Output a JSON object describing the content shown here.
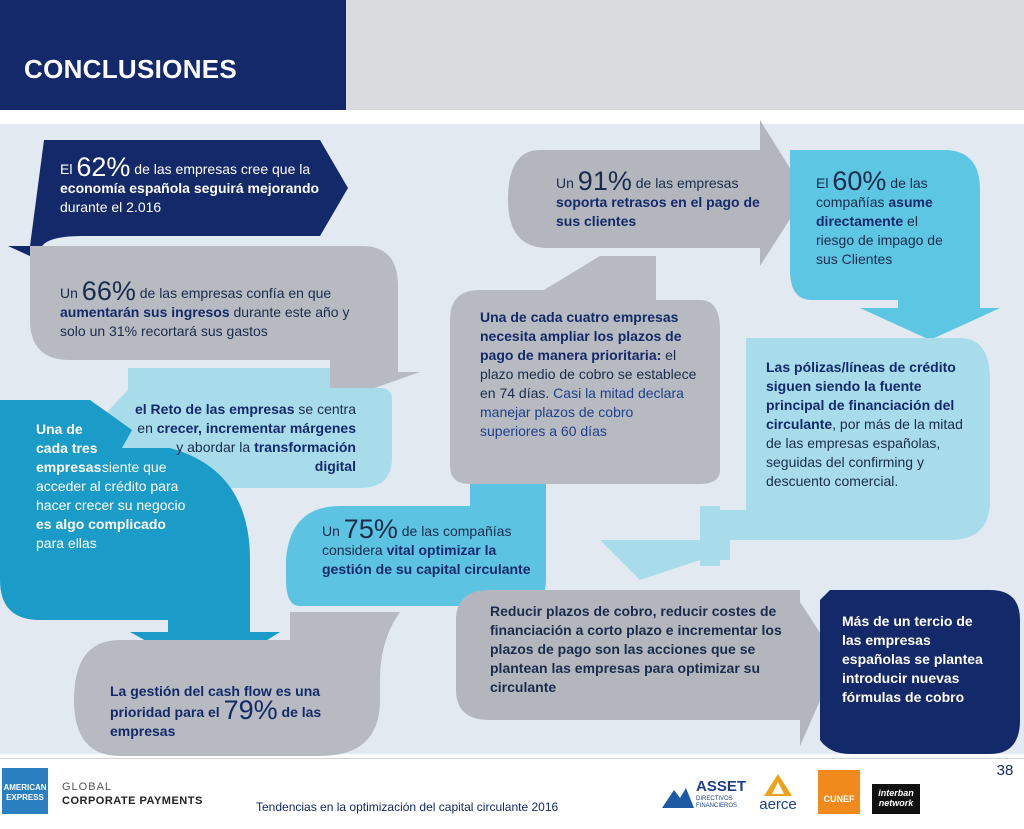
{
  "header": {
    "title": "CONCLUSIONES"
  },
  "blocks": {
    "b62": {
      "pre": "El",
      "pct": "62%",
      "t1": "de las empresas cree que la",
      "bold1": "economía española seguirá mejorando",
      "t2": "durante el 2.016"
    },
    "b66": {
      "pre": "Un",
      "pct": "66%",
      "t1": "de las empresas confía en que",
      "bold1": "aumentarán sus ingresos",
      "t2": "durante este año y solo un 31% recortará sus gastos"
    },
    "breto": {
      "bold1": "el Reto de las empresas",
      "t1": "se centra en",
      "bold2": "crecer, incrementar márgenes",
      "t2": "y abordar la",
      "bold3": "transformación digital"
    },
    "btres": {
      "bold1": "Una de cada tres empresas",
      "t1": "siente que acceder al crédito para hacer crecer su negocio",
      "bold2": "es algo complicado",
      "t2": "para ellas"
    },
    "bcash": {
      "bold1": "La gestión del cash flow es una prioridad para el",
      "pct": "79%",
      "bold2": "de las empresas"
    },
    "b75": {
      "pre": "Un",
      "pct": "75%",
      "t1": "de las compañías considera",
      "bold1": "vital optimizar la gestión de su capital circulante"
    },
    "bcuatro": {
      "bold1": "Una de cada cuatro empresas necesita ampliar los plazos de pago de manera prioritaria:",
      "t1": "el plazo medio de cobro se establece en 74 días.",
      "t2": "Casi la mitad declara manejar plazos de cobro superiores a 60 días"
    },
    "b91": {
      "pre": "Un",
      "pct": "91%",
      "t1": "de las empresas",
      "bold1": "soporta retrasos en el pago de sus clientes"
    },
    "b60": {
      "pre": "El",
      "pct": "60%",
      "t1": "de las compañías",
      "bold1": "asume directamente",
      "t2": "el riesgo de impago de sus Clientes"
    },
    "bpolizas": {
      "bold1": "Las pólizas/líneas de crédito siguen siendo la fuente principal de financiación del circulante",
      "t1": ", por más de la mitad de las empresas españolas, seguidas del confirming y descuento comercial."
    },
    "breducir": {
      "bold1": "Reducir plazos de cobro, reducir costes de financiación a corto plazo e incrementar los plazos de pago son las acciones que se plantean las empresas para optimizar su  circulante"
    },
    "btercio": {
      "bold1": "Más de un tercio de las empresas españolas se plantea introducir nuevas fórmulas de cobro"
    }
  },
  "footer": {
    "amex_line1": "AMERICAN",
    "amex_line2": "EXPRESS",
    "global": "GLOBAL",
    "corporate": "CORPORATE PAYMENTS",
    "tendencias": "Tendencias en la optimización del capital circulante 2016",
    "page": "38",
    "asset_name": "ASSET",
    "asset_sub": "DIRECTIVOS FINANCIEROS",
    "aerce": "aerce",
    "cunef": "CUNEF",
    "interban": "interban network"
  },
  "colors": {
    "navy": "#13296a",
    "grey": "#b3b7bd",
    "lightblue": "#a8d8ea",
    "teal": "#1497c4",
    "cyan": "#5fc6e3"
  }
}
